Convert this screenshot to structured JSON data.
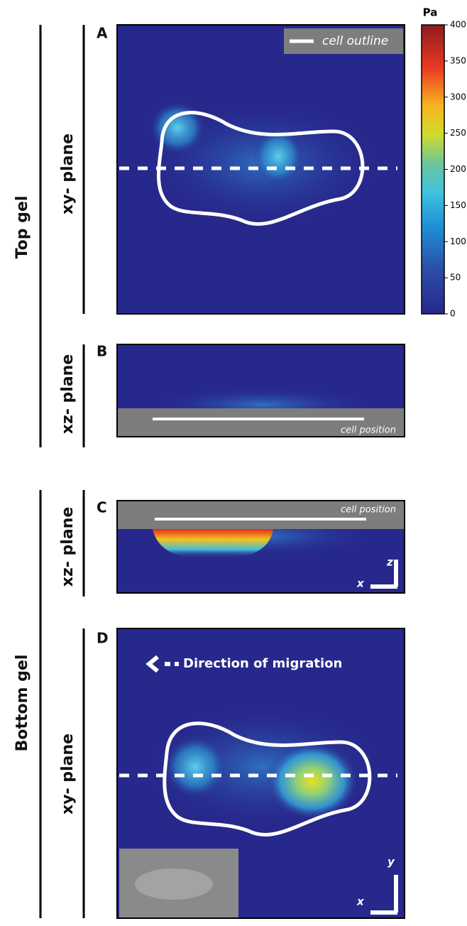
{
  "figure": {
    "left_labels": {
      "top": "Top gel",
      "bottom": "Bottom gel"
    },
    "panels": [
      {
        "letter": "A",
        "plane": "xy- plane",
        "legend": "cell outline"
      },
      {
        "letter": "B",
        "plane": "xz- plane",
        "band_label": "cell position"
      },
      {
        "letter": "C",
        "plane": "xz- plane",
        "band_label": "cell position",
        "axes": [
          "z",
          "x"
        ]
      },
      {
        "letter": "D",
        "plane": "xy- plane",
        "annotation": "Direction of migration",
        "axes": [
          "y",
          "x"
        ]
      }
    ],
    "colorbar": {
      "unit": "Pa",
      "lim": [
        0,
        400
      ],
      "ticks": [
        0,
        50,
        100,
        150,
        200,
        250,
        300,
        350,
        400
      ]
    }
  }
}
